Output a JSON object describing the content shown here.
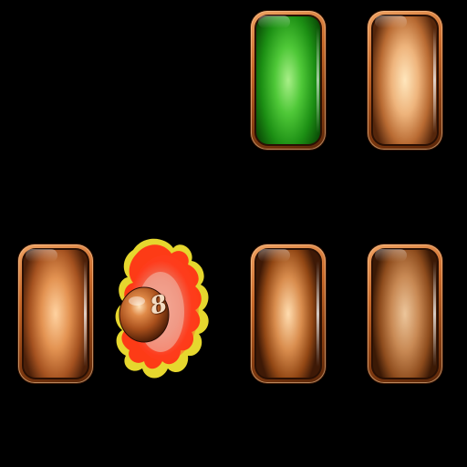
{
  "game": {
    "ball": {
      "number": "8",
      "state": "flaming",
      "colors": {
        "ball": "#c0642a",
        "flame_outer": "#ffee33",
        "flame_mid": "#ff3c1e",
        "flame_core": "#f5a08c"
      }
    },
    "tiles": [
      {
        "id": "tile-1",
        "state": "highlighted",
        "face_color": "#4fc838"
      },
      {
        "id": "tile-2",
        "state": "idle",
        "face_color": "#eeb47c"
      },
      {
        "id": "tile-3",
        "state": "idle",
        "face_color": "#e39352"
      },
      {
        "id": "tile-4",
        "state": "idle",
        "face_color": "#d98d4e"
      },
      {
        "id": "tile-5",
        "state": "idle",
        "face_color": "#c88954"
      }
    ],
    "colors": {
      "background": "#000000",
      "tile_rim": "#c8692a",
      "highlight": "#4fc838"
    }
  }
}
